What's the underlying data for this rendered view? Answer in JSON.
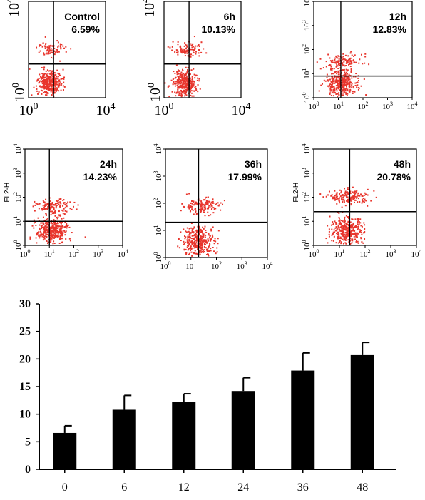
{
  "chart_data": [
    {
      "type": "scatter",
      "panel_label": "Control",
      "percent": "6.59%",
      "fl2_label": "",
      "xlim": [
        "10^0",
        "10^4"
      ],
      "ylim": [
        "10^0",
        "10^4"
      ],
      "quadrant_gate_decade": [
        1.3,
        1.4
      ],
      "upper_population_fraction": 0.0659
    },
    {
      "type": "scatter",
      "panel_label": "6h",
      "percent": "10.13%",
      "fl2_label": "",
      "xlim": [
        "10^0",
        "10^4"
      ],
      "ylim": [
        "10^0",
        "10^4"
      ],
      "quadrant_gate_decade": [
        1.3,
        1.4
      ],
      "upper_population_fraction": 0.1013
    },
    {
      "type": "scatter",
      "panel_label": "12h",
      "percent": "12.83%",
      "fl2_label": "",
      "xlim": [
        "10^0",
        "10^4"
      ],
      "ylim": [
        "10^0",
        "10^4"
      ],
      "quadrant_gate_decade": [
        1.1,
        0.9
      ],
      "upper_population_fraction": 0.1283
    },
    {
      "type": "scatter",
      "panel_label": "24h",
      "percent": "14.23%",
      "fl2_label": "FL2-H",
      "xlim": [
        "10^0",
        "10^4"
      ],
      "ylim": [
        "10^0",
        "10^4"
      ],
      "quadrant_gate_decade": [
        1.0,
        1.0
      ],
      "upper_population_fraction": 0.1423
    },
    {
      "type": "scatter",
      "panel_label": "36h",
      "percent": "17.99%",
      "fl2_label": "",
      "xlim": [
        "10^0",
        "10^4"
      ],
      "ylim": [
        "10^0",
        "10^4"
      ],
      "quadrant_gate_decade": [
        1.3,
        1.3
      ],
      "upper_population_fraction": 0.1799
    },
    {
      "type": "scatter",
      "panel_label": "48h",
      "percent": "20.78%",
      "fl2_label": "FL2-H",
      "xlim": [
        "10^0",
        "10^4"
      ],
      "ylim": [
        "10^0",
        "10^4"
      ],
      "quadrant_gate_decade": [
        1.4,
        1.4
      ],
      "upper_population_fraction": 0.2078
    },
    {
      "type": "bar",
      "categories": [
        "0",
        "6",
        "12",
        "24",
        "36",
        "48"
      ],
      "values": [
        6.6,
        10.8,
        12.2,
        14.2,
        17.9,
        20.7
      ],
      "errors": [
        1.3,
        2.6,
        1.5,
        2.4,
        3.2,
        2.3
      ],
      "ylim": [
        0,
        30
      ],
      "yticks": [
        0,
        5,
        10,
        15,
        20,
        25,
        30
      ],
      "bar_color": "#000000",
      "title": "",
      "xlabel": "",
      "ylabel": ""
    }
  ],
  "colors": {
    "dots": "#e8352c",
    "axes": "#000000"
  }
}
